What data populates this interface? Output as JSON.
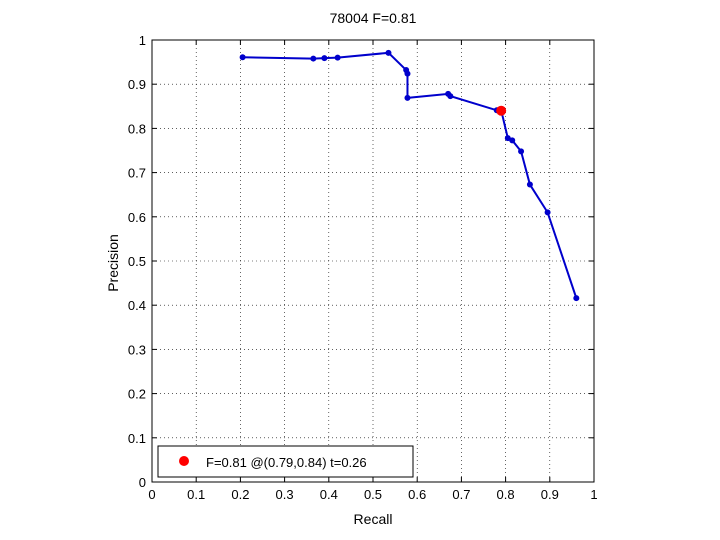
{
  "chart_data": {
    "type": "line",
    "title": "78004 F=0.81",
    "xlabel": "Recall",
    "ylabel": "Precision",
    "xlim": [
      0,
      1
    ],
    "ylim": [
      0,
      1
    ],
    "xticks": [
      "0",
      "0.1",
      "0.2",
      "0.3",
      "0.4",
      "0.5",
      "0.6",
      "0.7",
      "0.8",
      "0.9",
      "1"
    ],
    "yticks": [
      "0",
      "0.1",
      "0.2",
      "0.3",
      "0.4",
      "0.5",
      "0.6",
      "0.7",
      "0.8",
      "0.9",
      "1"
    ],
    "grid": true,
    "series": [
      {
        "color": "#0000cc",
        "points": [
          [
            0.205,
            0.961
          ],
          [
            0.365,
            0.958
          ],
          [
            0.39,
            0.959
          ],
          [
            0.42,
            0.96
          ],
          [
            0.535,
            0.971
          ],
          [
            0.575,
            0.932
          ],
          [
            0.578,
            0.924
          ],
          [
            0.578,
            0.869
          ],
          [
            0.67,
            0.878
          ],
          [
            0.675,
            0.873
          ],
          [
            0.78,
            0.841
          ],
          [
            0.79,
            0.841
          ],
          [
            0.805,
            0.778
          ],
          [
            0.815,
            0.773
          ],
          [
            0.835,
            0.748
          ],
          [
            0.855,
            0.673
          ],
          [
            0.895,
            0.61
          ],
          [
            0.96,
            0.416
          ]
        ]
      }
    ],
    "highlight": {
      "x": 0.79,
      "y": 0.84,
      "color": "#ff0000"
    },
    "legend": {
      "position": "bottom-left",
      "label": "F=0.81 @(0.79,0.84) t=0.26"
    }
  }
}
